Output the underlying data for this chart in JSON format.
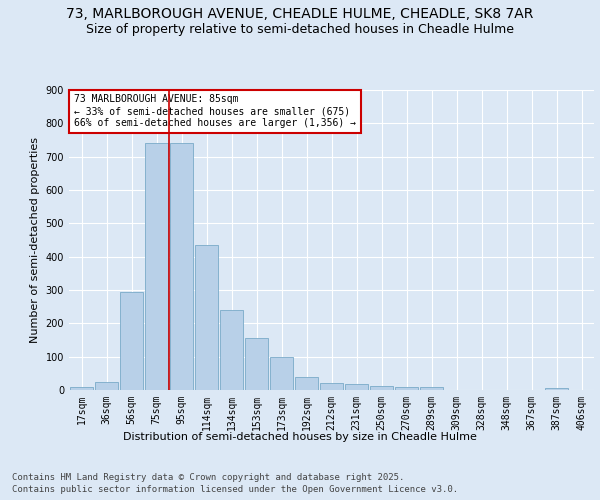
{
  "title1": "73, MARLBOROUGH AVENUE, CHEADLE HULME, CHEADLE, SK8 7AR",
  "title2": "Size of property relative to semi-detached houses in Cheadle Hulme",
  "xlabel": "Distribution of semi-detached houses by size in Cheadle Hulme",
  "ylabel": "Number of semi-detached properties",
  "categories": [
    "17sqm",
    "36sqm",
    "56sqm",
    "75sqm",
    "95sqm",
    "114sqm",
    "134sqm",
    "153sqm",
    "173sqm",
    "192sqm",
    "212sqm",
    "231sqm",
    "250sqm",
    "270sqm",
    "289sqm",
    "309sqm",
    "328sqm",
    "348sqm",
    "367sqm",
    "387sqm",
    "406sqm"
  ],
  "values": [
    8,
    25,
    295,
    742,
    742,
    435,
    240,
    155,
    100,
    38,
    20,
    18,
    12,
    10,
    10,
    0,
    0,
    0,
    0,
    5,
    0
  ],
  "bar_color": "#b8d0e8",
  "bar_edge_color": "#7aaac8",
  "vline_x_index": 3.5,
  "annotation_line1": "73 MARLBOROUGH AVENUE: 85sqm",
  "annotation_line2": "← 33% of semi-detached houses are smaller (675)",
  "annotation_line3": "66% of semi-detached houses are larger (1,356) →",
  "annotation_box_color": "#ffffff",
  "annotation_box_edge": "#cc0000",
  "ylim": [
    0,
    900
  ],
  "yticks": [
    0,
    100,
    200,
    300,
    400,
    500,
    600,
    700,
    800,
    900
  ],
  "background_color": "#dce8f5",
  "plot_background": "#dce8f5",
  "grid_color": "#ffffff",
  "footer1": "Contains HM Land Registry data © Crown copyright and database right 2025.",
  "footer2": "Contains public sector information licensed under the Open Government Licence v3.0.",
  "title_fontsize": 10,
  "subtitle_fontsize": 9,
  "axis_label_fontsize": 8,
  "tick_fontsize": 7,
  "footer_fontsize": 6.5,
  "annotation_fontsize": 7
}
